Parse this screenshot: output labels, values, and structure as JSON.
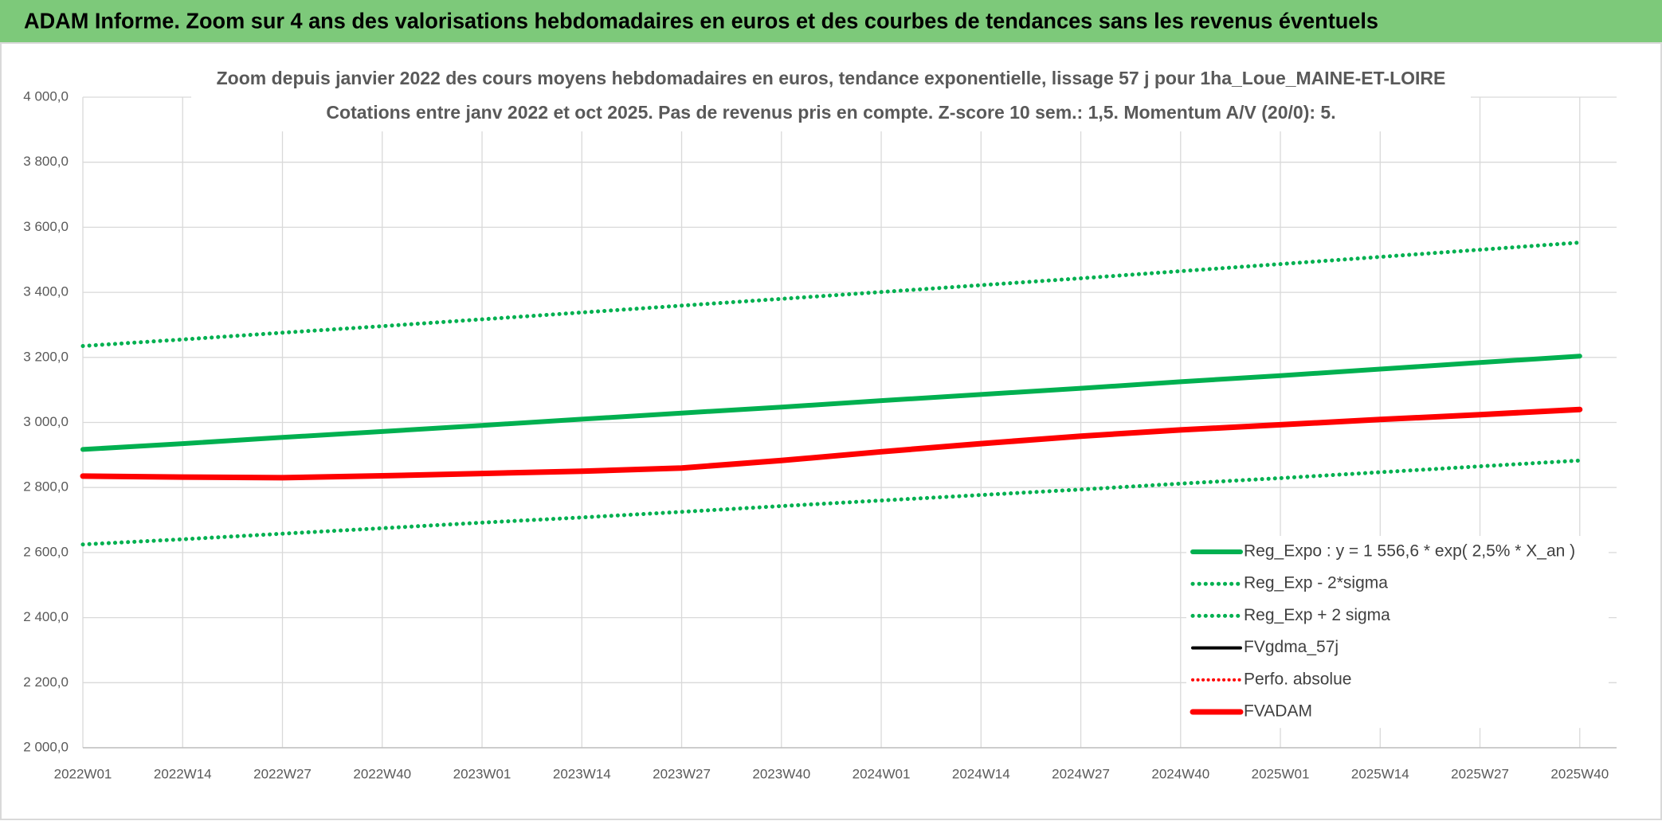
{
  "header": {
    "title": "ADAM Informe. Zoom sur 4 ans des valorisations hebdomadaires en euros et des courbes de tendances sans les revenus éventuels"
  },
  "chart_data": {
    "type": "line",
    "title": "Zoom depuis janvier 2022 des cours moyens hebdomadaires en euros, tendance exponentielle, lissage 57 j pour 1ha_Loue_MAINE-ET-LOIRE",
    "subtitle": "Cotations entre janv 2022 et oct 2025. Pas de revenus pris en compte. Z-score 10 sem.: 1,5. Momentum A/V (20/0): 5.",
    "categories": [
      "2022W01",
      "2022W14",
      "2022W27",
      "2022W40",
      "2023W01",
      "2023W14",
      "2023W27",
      "2023W40",
      "2024W01",
      "2024W14",
      "2024W27",
      "2024W40",
      "2025W01",
      "2025W14",
      "2025W27",
      "2025W40"
    ],
    "ylim": [
      2000,
      4000
    ],
    "yticks": [
      {
        "value": 2000,
        "label": "2 000,0"
      },
      {
        "value": 2200,
        "label": "2 200,0"
      },
      {
        "value": 2400,
        "label": "2 400,0"
      },
      {
        "value": 2600,
        "label": "2 600,0"
      },
      {
        "value": 2800,
        "label": "2 800,0"
      },
      {
        "value": 3000,
        "label": "3 000,0"
      },
      {
        "value": 3200,
        "label": "3 200,0"
      },
      {
        "value": 3400,
        "label": "3 400,0"
      },
      {
        "value": 3600,
        "label": "3 600,0"
      },
      {
        "value": 3800,
        "label": "3 800,0"
      },
      {
        "value": 4000,
        "label": "4 000,0"
      }
    ],
    "grid": true,
    "legend": "right",
    "series": [
      {
        "name": "Reg_Expo : y = 1 556,6 * exp( 2,5% *  X_an )",
        "color": "#00b050",
        "line_style": "solid",
        "width": 6,
        "values": [
          2917,
          2935,
          2954,
          2972,
          2991,
          3010,
          3029,
          3047,
          3067,
          3086,
          3105,
          3125,
          3144,
          3164,
          3184,
          3204
        ]
      },
      {
        "name": "Reg_Exp - 2*sigma",
        "color": "#00b050",
        "line_style": "dotted",
        "width": 5,
        "values": [
          2625,
          2641,
          2658,
          2675,
          2692,
          2708,
          2725,
          2743,
          2760,
          2777,
          2794,
          2812,
          2829,
          2847,
          2865,
          2883
        ]
      },
      {
        "name": "Reg_Exp + 2 sigma",
        "color": "#00b050",
        "line_style": "dotted",
        "width": 5,
        "values": [
          3235,
          3255,
          3276,
          3296,
          3317,
          3338,
          3359,
          3380,
          3401,
          3422,
          3443,
          3465,
          3487,
          3509,
          3531,
          3553
        ]
      },
      {
        "name": "FVgdma_57j",
        "color": "#000000",
        "line_style": "solid",
        "width": 4,
        "values": [
          2835,
          2832,
          2830,
          2836,
          2843,
          2850,
          2860,
          2883,
          2910,
          2935,
          2958,
          2977,
          2993,
          3009,
          3024,
          3040
        ]
      },
      {
        "name": "Perfo. absolue",
        "color": "#ff0000",
        "line_style": "dotted",
        "width": 4,
        "values": [
          2835,
          2832,
          2830,
          2836,
          2843,
          2850,
          2860,
          2883,
          2910,
          2935,
          2958,
          2977,
          2993,
          3009,
          3024,
          3040
        ]
      },
      {
        "name": "FVADAM",
        "color": "#ff0000",
        "line_style": "solid",
        "width": 7,
        "values": [
          2835,
          2832,
          2830,
          2836,
          2843,
          2850,
          2860,
          2883,
          2910,
          2935,
          2958,
          2977,
          2993,
          3009,
          3024,
          3040
        ]
      }
    ]
  }
}
